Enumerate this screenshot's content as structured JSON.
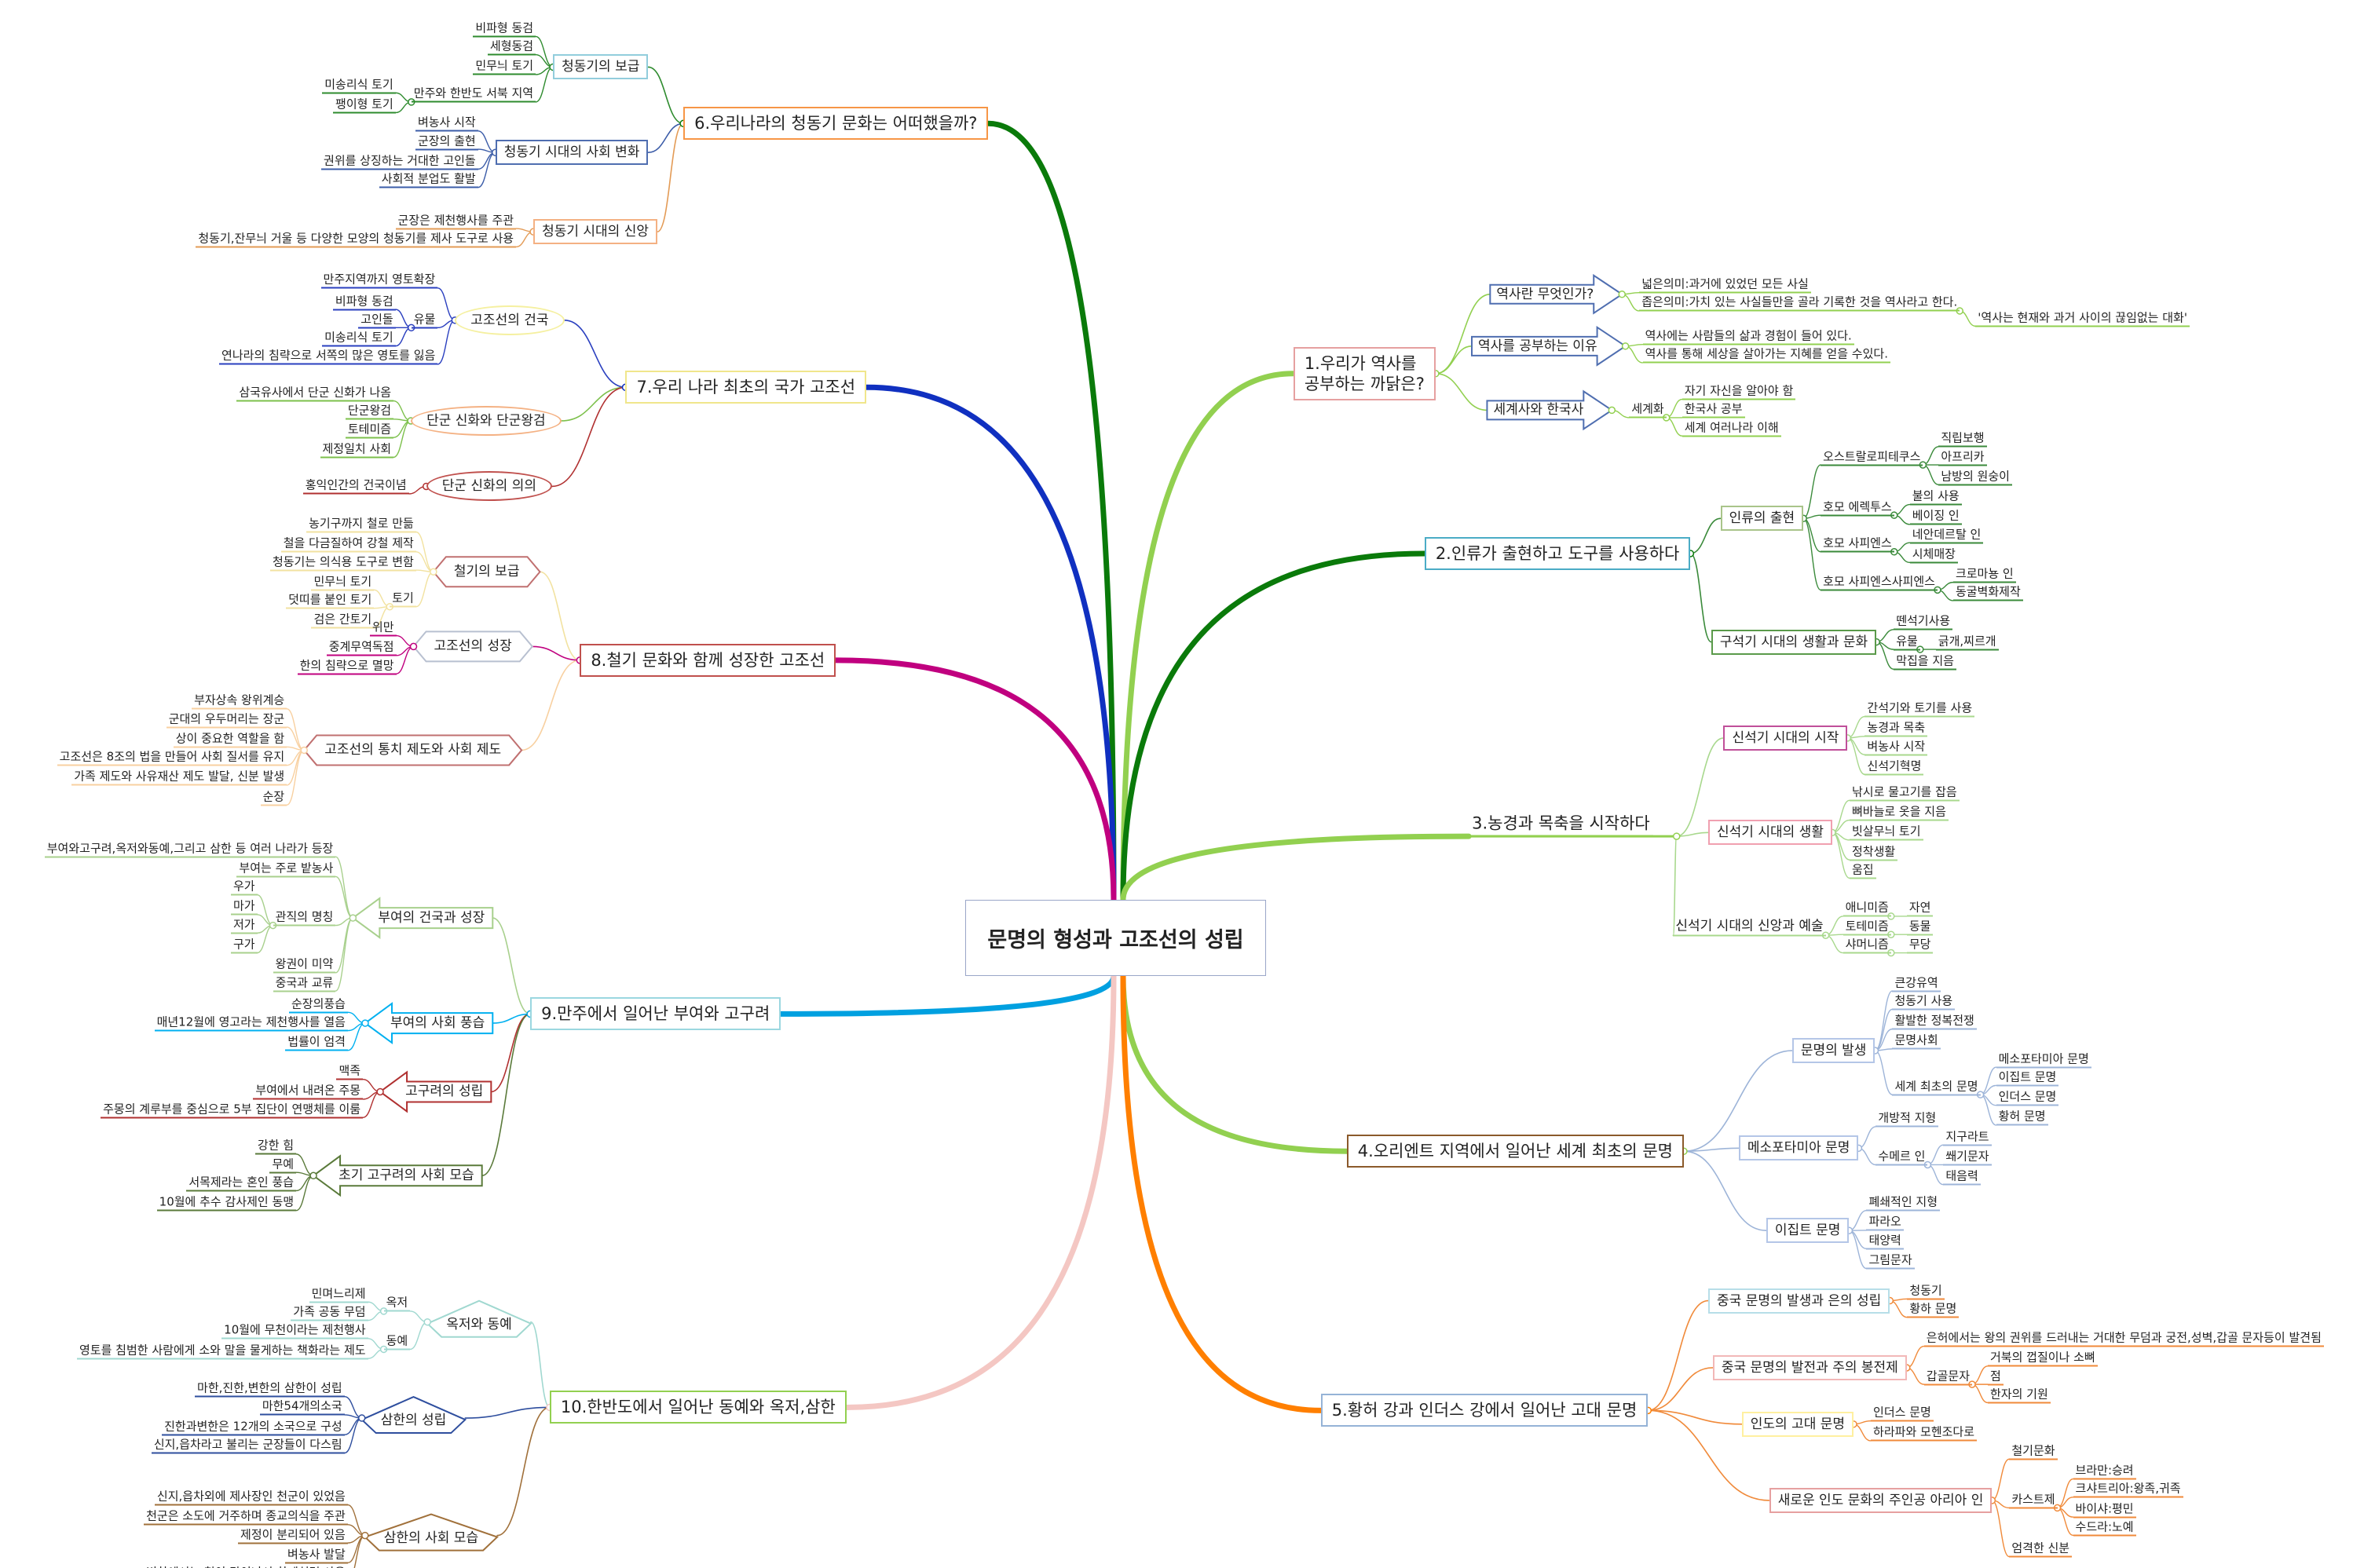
{
  "center": {
    "title": "문명의 형성과 고조선의 성립"
  },
  "branches": [
    {
      "title": "1.우리가 역사를\n공부하는 까닭은?",
      "line_color": "#92d050",
      "border": "#e6a0a0",
      "subs": [
        {
          "label": "역사란 무엇인가?",
          "color": "#92d050",
          "border": "#4f6eb0",
          "children": [
            {
              "label": "넓은의미:과거에 있었던 모든 사실"
            },
            {
              "label": "좁은의미:가치 있는 사실들만을 골라 기록한 것을 역사라고 한다.",
              "children": [
                {
                  "label": "'역사는 현재와 과거 사이의 끊임없는 대화'"
                }
              ]
            }
          ]
        },
        {
          "label": "역사를 공부하는 이유",
          "color": "#92d050",
          "border": "#4f6eb0",
          "children": [
            {
              "label": "역사에는 사람들의 삶과 경험이 들어 있다."
            },
            {
              "label": "역사를 통해  세상을 살아가는 지혜를 얻을 수있다."
            }
          ]
        },
        {
          "label": "세계사와 한국사",
          "color": "#92d050",
          "border": "#4f6eb0",
          "children": [
            {
              "label": "세계화",
              "children": [
                {
                  "label": "자기 자신을 알아야 함"
                },
                {
                  "label": "한국사 공부"
                },
                {
                  "label": "세계 여러나라 이해"
                }
              ]
            }
          ]
        }
      ]
    },
    {
      "title": "2.인류가 출현하고 도구를 사용하다",
      "line_color": "#0a7a0a",
      "border": "#4bacc6",
      "subs": [
        {
          "label": "인류의 출현",
          "color": "#3a8a3a",
          "border": "#a9c48a",
          "children": [
            {
              "label": "오스트랄로피테쿠스",
              "children": [
                {
                  "label": "직립보행"
                },
                {
                  "label": "아프리카"
                },
                {
                  "label": "남방의 원숭이"
                }
              ]
            },
            {
              "label": "호모 에렉투스",
              "children": [
                {
                  "label": "불의 사용"
                },
                {
                  "label": "베이징 인"
                }
              ]
            },
            {
              "label": "호모 사피엔스",
              "children": [
                {
                  "label": "네안데르탈 인"
                },
                {
                  "label": "시체매장"
                }
              ]
            },
            {
              "label": "호모 사피엔스사피엔스",
              "children": [
                {
                  "label": "크로마뇽 인"
                },
                {
                  "label": "동굴벽화제작"
                }
              ]
            }
          ]
        },
        {
          "label": "구석기 시대의 생활과 문화",
          "color": "#3a8a3a",
          "border": "#5a9a4a",
          "children": [
            {
              "label": "뗀석기사용"
            },
            {
              "label": "유물",
              "children": [
                {
                  "label": "긁개,찌르개"
                }
              ]
            },
            {
              "label": "막집을 지음"
            }
          ]
        }
      ]
    },
    {
      "title": "3.농경과 목축을 시작하다",
      "line_color": "#92d050",
      "border": "#92d050",
      "subs": [
        {
          "label": "신석기 시대의 시작",
          "color": "#a8d88d",
          "border": "#c0509a",
          "children": [
            {
              "label": "간석기와 토기를 사용"
            },
            {
              "label": "농경과 목축"
            },
            {
              "label": "벼농사 시작"
            },
            {
              "label": "신석기혁명"
            }
          ]
        },
        {
          "label": "신석기 시대의 생활",
          "color": "#a8d88d",
          "border": "#f0a0b0",
          "children": [
            {
              "label": "낚시로 물고기를 잡음"
            },
            {
              "label": "뼈바늘로 옷을 지음"
            },
            {
              "label": "빗살무늬 토기"
            },
            {
              "label": "정착생활"
            },
            {
              "label": "움집"
            }
          ]
        },
        {
          "label": "신석기 시대의 신앙과 예술",
          "color": "#a8d88d",
          "border": "#a8d88d",
          "children": [
            {
              "label": "애니미즘",
              "children": [
                {
                  "label": "자연"
                }
              ]
            },
            {
              "label": "토테미즘",
              "children": [
                {
                  "label": "동물"
                }
              ]
            },
            {
              "label": "샤머니즘",
              "children": [
                {
                  "label": "무당"
                }
              ]
            }
          ]
        }
      ]
    },
    {
      "title": "4.오리엔트 지역에서 일어난 세계 최초의 문명",
      "line_color": "#92d050",
      "border": "#8b5a2b",
      "subs": [
        {
          "label": "문명의 발생",
          "color": "#9db4d8",
          "border": "#b4c6e7",
          "children": [
            {
              "label": "큰강유역"
            },
            {
              "label": "청동기 사용"
            },
            {
              "label": "활발한 정복전쟁"
            },
            {
              "label": "문명사회"
            },
            {
              "label": "세계 최초의 문명",
              "children": [
                {
                  "label": "메소포타미아 문명"
                },
                {
                  "label": "이집트 문명"
                },
                {
                  "label": "인더스 문명"
                },
                {
                  "label": "황허 문명"
                }
              ]
            }
          ]
        },
        {
          "label": "메소포타미아 문명",
          "color": "#9db4d8",
          "border": "#b4c6e7",
          "children": [
            {
              "label": "개방적 지형"
            },
            {
              "label": "수메르 인",
              "children": [
                {
                  "label": "지구라트"
                },
                {
                  "label": "쐐기문자"
                },
                {
                  "label": "태음력"
                }
              ]
            }
          ]
        },
        {
          "label": "이집트 문명",
          "color": "#9db4d8",
          "border": "#b4c6e7",
          "children": [
            {
              "label": "폐쇄적인 지형"
            },
            {
              "label": "파라오"
            },
            {
              "label": "태양력"
            },
            {
              "label": "그림문자"
            }
          ]
        }
      ]
    },
    {
      "title": "5.황허 강과 인더스 강에서 일어난 고대 문명",
      "line_color": "#ff7f00",
      "border": "#95b3d7",
      "subs": [
        {
          "label": "중국 문명의 발생과 은의 성립",
          "color": "#f08a3a",
          "border": "#b7dee8",
          "children": [
            {
              "label": "청동기"
            },
            {
              "label": "황하 문명"
            }
          ]
        },
        {
          "label": "중국 문명의 발전과 주의 봉전제",
          "color": "#f08a3a",
          "border": "#f2b8b8",
          "children": [
            {
              "label": "은허에서는 왕의 권위를 드러내는 거대한 무덤과 궁전,성벽,갑골 문자등이 발견됨"
            },
            {
              "label": "갑골문자",
              "children": [
                {
                  "label": "거북의 껍질이나 소뼈"
                },
                {
                  "label": "점"
                },
                {
                  "label": "한자의 기원"
                }
              ]
            }
          ]
        },
        {
          "label": "인도의 고대 문명",
          "color": "#f08a3a",
          "border": "#fff0a0",
          "children": [
            {
              "label": "인더스 문명"
            },
            {
              "label": "하라파와 모헨조다로"
            }
          ]
        },
        {
          "label": "새로운 인도 문화의 주인공 아리아 인",
          "color": "#f08a3a",
          "border": "#e6a0a0",
          "children": [
            {
              "label": "철기문화"
            },
            {
              "label": "카스트제",
              "children": [
                {
                  "label": "브라만:승려"
                },
                {
                  "label": "크샤트리아:왕족,귀족"
                },
                {
                  "label": "바이샤:평민"
                },
                {
                  "label": "수드라:노예"
                }
              ]
            },
            {
              "label": "엄격한 신분"
            }
          ]
        }
      ]
    },
    {
      "title": "6.우리나라의 청동기 문화는 어떠했을까?",
      "line_color": "#0a7a0a",
      "border": "#f79646",
      "subs": [
        {
          "label": "청동기의 보급",
          "color": "#2e8b2e",
          "border": "#92cddc",
          "children": [
            {
              "label": "비파형 동검"
            },
            {
              "label": "세형동검"
            },
            {
              "label": "민무늬 토기"
            },
            {
              "label": "만주와 한반도 서북 지역",
              "children": [
                {
                  "label": "미송리식 토기"
                },
                {
                  "label": "팽이형 토기"
                }
              ]
            }
          ]
        },
        {
          "label": "청동기 시대의 사회 변화",
          "color": "#3b5ca8",
          "border": "#4f6eb0",
          "children": [
            {
              "label": "벼농사 시작"
            },
            {
              "label": "군장의 출현"
            },
            {
              "label": "권위를 상징하는 거대한 고인돌"
            },
            {
              "label": "사회적 분업도 활발"
            }
          ]
        },
        {
          "label": "청동기 시대의 신앙",
          "color": "#e39b56",
          "border": "#f4b183",
          "children": [
            {
              "label": "군장은 제천행사를 주관"
            },
            {
              "label": "청동기,잔무늬 거울 등 다양한 모양의 청동기를 제사 도구로 사용"
            }
          ]
        }
      ]
    },
    {
      "title": "7.우리 나라 최초의 국가 고조선",
      "line_color": "#1030c0",
      "border": "#f0e68c",
      "subs": [
        {
          "label": "고조선의 건국",
          "color": "#2a3fbf",
          "border": "#f5f0a0",
          "children": [
            {
              "label": "만주지역까지 영토확장"
            },
            {
              "label": "유물",
              "children": [
                {
                  "label": "비파형 동검"
                },
                {
                  "label": "고인돌"
                },
                {
                  "label": "미송리식 토기"
                }
              ]
            },
            {
              "label": "연나라의 침략으로  서쪽의 많은 영토를 잃음"
            }
          ]
        },
        {
          "label": "단군 신화와 단군왕검",
          "color": "#7cc04b",
          "border": "#f4b183",
          "children": [
            {
              "label": "삼국유사에서 단군 신화가 나옴"
            },
            {
              "label": "단군왕검"
            },
            {
              "label": "토테미즘"
            },
            {
              "label": "제정일치 사회"
            }
          ]
        },
        {
          "label": "단군 신화의 의의",
          "color": "#b03030",
          "border": "#c0504d",
          "children": [
            {
              "label": "홍익인간의 건국이념"
            }
          ]
        }
      ]
    },
    {
      "title": "8.철기 문화와 함께 성장한 고조선",
      "line_color": "#c0007f",
      "border": "#c0504d",
      "subs": [
        {
          "label": "철기의 보급",
          "color": "#f2e2a0",
          "border": "#c07070",
          "children": [
            {
              "label": "농기구까지 철로 만듦"
            },
            {
              "label": "철을 다금질하여 강철 제작"
            },
            {
              "label": "청동기는 의식용 도구로 변함"
            },
            {
              "label": "토기",
              "children": [
                {
                  "label": "민무늬 토기"
                },
                {
                  "label": "덧띠를 붙인 토기"
                },
                {
                  "label": "검은 간토기"
                }
              ]
            }
          ]
        },
        {
          "label": "고조선의 성장",
          "color": "#c0007f",
          "border": "#b8c0d0",
          "children": [
            {
              "label": "위만"
            },
            {
              "label": "중계무역독점"
            },
            {
              "label": "한의 침략으로 멸망"
            }
          ]
        },
        {
          "label": "고조선의 통치 제도와 사회 제도",
          "color": "#f8d0a0",
          "border": "#c07070",
          "children": [
            {
              "label": "부자상속 왕위계승"
            },
            {
              "label": "군대의 우두머리는 장군"
            },
            {
              "label": "상이 중요한 역할을 함"
            },
            {
              "label": "고조선은 8조의 법을 만들어 사회 질서를 유지"
            },
            {
              "label": "가족 제도와 사유재산 제도 발달, 신분 발생"
            },
            {
              "label": "순장"
            }
          ]
        }
      ]
    },
    {
      "title": "9.만주에서 일어난 부여와 고구려",
      "line_color": "#00a0e0",
      "border": "#9bd7e0",
      "subs": [
        {
          "label": "부여의 건국과 성장",
          "color": "#a8d08d",
          "border": "#a8d08d",
          "children": [
            {
              "label": "부여와고구려,옥저와동예,그리고 삼한 등 여러 나라가 등장"
            },
            {
              "label": "부여는 주로 밭농사"
            },
            {
              "label": "관직의 명칭",
              "children": [
                {
                  "label": "우가"
                },
                {
                  "label": "마가"
                },
                {
                  "label": "저가"
                },
                {
                  "label": "구가"
                }
              ]
            },
            {
              "label": "왕권이 미약"
            },
            {
              "label": "중국과 교류"
            }
          ]
        },
        {
          "label": "부여의 사회 풍습",
          "color": "#00b0f0",
          "border": "#00b0f0",
          "children": [
            {
              "label": "순장의풍습"
            },
            {
              "label": "매년12월에 영고라는 제천행사를 열음"
            },
            {
              "label": "법률이 엄격"
            }
          ]
        },
        {
          "label": "고구려의 성립",
          "color": "#b03030",
          "border": "#b03030",
          "children": [
            {
              "label": "맥족"
            },
            {
              "label": "부여에서 내려온 주몽"
            },
            {
              "label": "주몽의 계루부를 중심으로 5부 집단이 연맹체를 이룸"
            }
          ]
        },
        {
          "label": "초기 고구려의 사회 모습",
          "color": "#5a7a3a",
          "border": "#5a7a3a",
          "children": [
            {
              "label": "강한 힘"
            },
            {
              "label": "무예"
            },
            {
              "label": "서목제라는 혼인 풍습"
            },
            {
              "label": "10월에 추수 감사제인 동맹"
            }
          ]
        }
      ]
    },
    {
      "title": "10.한반도에서 일어난 동예와 옥저,삼한",
      "line_color": "#f4c7c3",
      "border": "#92d050",
      "subs": [
        {
          "label": "옥저와 동예",
          "color": "#a0d8d0",
          "border": "#a0d8d0",
          "children": [
            {
              "label": "옥저",
              "children": [
                {
                  "label": "민며느리제"
                },
                {
                  "label": "가족 공동 무덤"
                }
              ]
            },
            {
              "label": "동예",
              "children": [
                {
                  "label": "10월에 무천이라는 제천행사"
                },
                {
                  "label": "영토를 침범한 사람에게 소와 말을 물게하는 책화라는 제도"
                }
              ]
            }
          ]
        },
        {
          "label": "삼한의 성립",
          "color": "#2e4e9e",
          "border": "#2e4e9e",
          "children": [
            {
              "label": "마한,진한,변한의 삼한이 성립"
            },
            {
              "label": "마한54개의소국"
            },
            {
              "label": "진한과변한은 12개의 소국으로 구성"
            },
            {
              "label": "신지,읍차라고 불리는 군장들이 다스림"
            }
          ]
        },
        {
          "label": "삼한의 사회 모습",
          "color": "#a0703a",
          "border": "#a0703a",
          "children": [
            {
              "label": "신지,읍차외에 제사장인 천군이 있었음"
            },
            {
              "label": "천군은 소도에 거주하며 종교의식을 주관"
            },
            {
              "label": "제정이 분리되어 있음"
            },
            {
              "label": "벼농사 발달"
            },
            {
              "label": "변한에서는 철이 많이나서 화폐처럼 사용"
            }
          ]
        }
      ]
    }
  ]
}
